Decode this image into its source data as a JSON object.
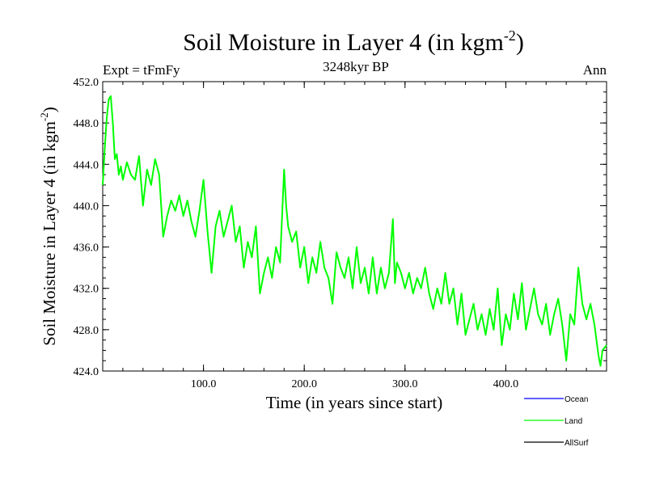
{
  "chart_data": {
    "type": "line",
    "title": "Soil Moisture in Layer 4 (in kgm",
    "title_superscript": "-2",
    "title_suffix": ")",
    "subtitle": "3248kyr BP",
    "left_label": "Expt = tFmFy",
    "right_label": "Ann",
    "xlabel": "Time (in years since start)",
    "ylabel": "Soil Moisture in Layer 4 (in kgm",
    "ylabel_superscript": "-2",
    "ylabel_suffix": ")",
    "xlim": [
      0,
      500
    ],
    "ylim": [
      424,
      452
    ],
    "x_ticks": [
      100,
      200,
      300,
      400
    ],
    "x_tick_labels": [
      "100.0",
      "200.0",
      "300.0",
      "400.0"
    ],
    "y_ticks": [
      424,
      428,
      432,
      436,
      440,
      444,
      448,
      452
    ],
    "y_tick_labels": [
      "424.0",
      "428.0",
      "432.0",
      "436.0",
      "440.0",
      "444.0",
      "448.0",
      "452.0"
    ],
    "legend": [
      {
        "name": "Ocean",
        "color": "#0000ff"
      },
      {
        "name": "Land",
        "color": "#00ff00"
      },
      {
        "name": "AllSurf",
        "color": "#000000"
      }
    ],
    "series": [
      {
        "name": "Land",
        "color": "#00ff00",
        "x": [
          0,
          2,
          4,
          6,
          8,
          10,
          12,
          14,
          16,
          18,
          20,
          24,
          28,
          32,
          36,
          40,
          44,
          48,
          52,
          56,
          60,
          64,
          68,
          72,
          76,
          80,
          84,
          88,
          92,
          96,
          100,
          104,
          108,
          112,
          116,
          120,
          124,
          128,
          132,
          136,
          140,
          144,
          148,
          152,
          156,
          160,
          164,
          168,
          172,
          176,
          180,
          182,
          184,
          188,
          192,
          196,
          200,
          204,
          208,
          212,
          216,
          220,
          224,
          228,
          232,
          236,
          240,
          244,
          248,
          252,
          256,
          260,
          264,
          268,
          272,
          276,
          280,
          284,
          288,
          290,
          292,
          296,
          300,
          304,
          308,
          312,
          316,
          320,
          324,
          328,
          332,
          336,
          340,
          344,
          348,
          352,
          356,
          360,
          364,
          368,
          372,
          376,
          380,
          384,
          388,
          392,
          396,
          400,
          404,
          408,
          412,
          416,
          420,
          424,
          428,
          432,
          436,
          440,
          444,
          448,
          452,
          456,
          460,
          464,
          468,
          472,
          476,
          480,
          484,
          488,
          492,
          494,
          496,
          500
        ],
        "values": [
          442.0,
          445.5,
          448.5,
          450.3,
          450.6,
          448.0,
          444.5,
          445.0,
          443.0,
          443.8,
          442.5,
          444.2,
          443.0,
          442.5,
          444.8,
          440.0,
          443.5,
          442.0,
          444.5,
          443.0,
          437.0,
          439.0,
          440.5,
          439.5,
          441.0,
          439.0,
          440.5,
          438.5,
          437.0,
          439.5,
          442.5,
          437.5,
          433.5,
          438.0,
          439.5,
          437.0,
          438.5,
          440.0,
          436.5,
          438.0,
          434.0,
          436.5,
          435.0,
          438.0,
          431.5,
          433.5,
          435.0,
          433.0,
          436.0,
          434.5,
          443.5,
          440.0,
          438.0,
          436.5,
          437.5,
          434.0,
          436.0,
          432.5,
          435.0,
          433.5,
          436.5,
          434.0,
          433.0,
          430.5,
          435.5,
          434.0,
          433.0,
          435.0,
          432.0,
          436.0,
          432.5,
          434.0,
          431.5,
          435.0,
          431.5,
          434.0,
          432.0,
          433.5,
          438.7,
          432.5,
          434.5,
          433.5,
          432.0,
          433.5,
          431.5,
          433.0,
          432.0,
          434.0,
          431.5,
          430.0,
          432.0,
          430.5,
          433.5,
          430.5,
          432.0,
          428.5,
          431.5,
          427.5,
          429.0,
          430.5,
          428.0,
          429.5,
          427.5,
          430.0,
          428.0,
          432.0,
          426.5,
          429.5,
          428.0,
          431.5,
          429.0,
          432.5,
          428.0,
          430.0,
          432.0,
          429.5,
          428.5,
          430.5,
          427.5,
          429.5,
          431.0,
          428.5,
          425.0,
          429.5,
          428.5,
          434.0,
          430.5,
          429.0,
          430.5,
          428.5,
          425.5,
          424.5,
          426.0,
          426.5
        ]
      }
    ]
  }
}
